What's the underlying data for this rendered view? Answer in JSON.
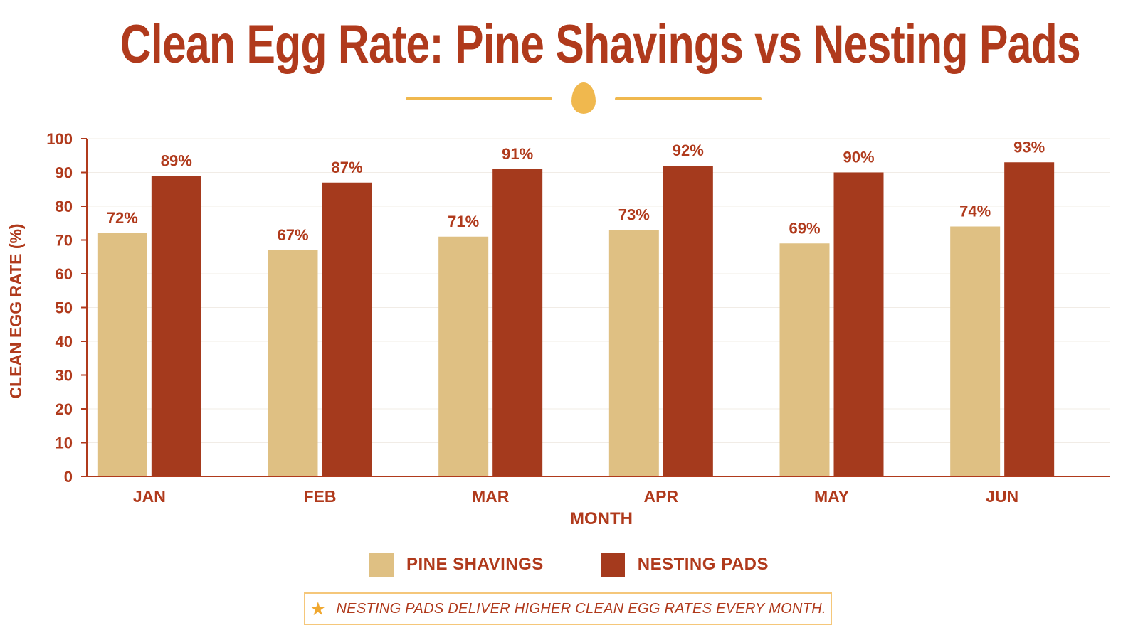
{
  "title": "Clean Egg Rate: Pine Shavings vs Nesting Pads",
  "decoration": {
    "divider_icon": "egg-icon",
    "color": "#f0b84e"
  },
  "colors": {
    "accent": "#b03a1c",
    "pine": "#dfc083",
    "pads": "#a53a1d",
    "axis": "#b03a1c",
    "note_border": "#f5c77a",
    "star": "#f0a830"
  },
  "chart_data": {
    "type": "bar",
    "title": "Clean Egg Rate: Pine Shavings vs Nesting Pads",
    "xlabel": "MONTH",
    "ylabel": "CLEAN EGG RATE (%)",
    "ylim": [
      0,
      100
    ],
    "yticks": [
      0,
      10,
      20,
      30,
      40,
      50,
      60,
      70,
      80,
      90,
      100
    ],
    "categories": [
      "JAN",
      "FEB",
      "MAR",
      "APR",
      "MAY",
      "JUN"
    ],
    "series": [
      {
        "name": "PINE SHAVINGS",
        "values": [
          72,
          67,
          71,
          73,
          69,
          74
        ],
        "labels": [
          "72%",
          "67%",
          "71%",
          "73%",
          "69%",
          "74%"
        ]
      },
      {
        "name": "NESTING PADS",
        "values": [
          89,
          87,
          91,
          92,
          90,
          93
        ],
        "labels": [
          "89%",
          "87%",
          "91%",
          "92%",
          "90%",
          "93%"
        ]
      }
    ],
    "grid": true,
    "legend_position": "bottom"
  },
  "legend": {
    "items": [
      {
        "label": "PINE SHAVINGS",
        "color": "#dfc083"
      },
      {
        "label": "NESTING PADS",
        "color": "#a53a1d"
      }
    ]
  },
  "note": {
    "icon": "star-icon",
    "text": "NESTING PADS DELIVER HIGHER CLEAN EGG RATES EVERY MONTH."
  }
}
